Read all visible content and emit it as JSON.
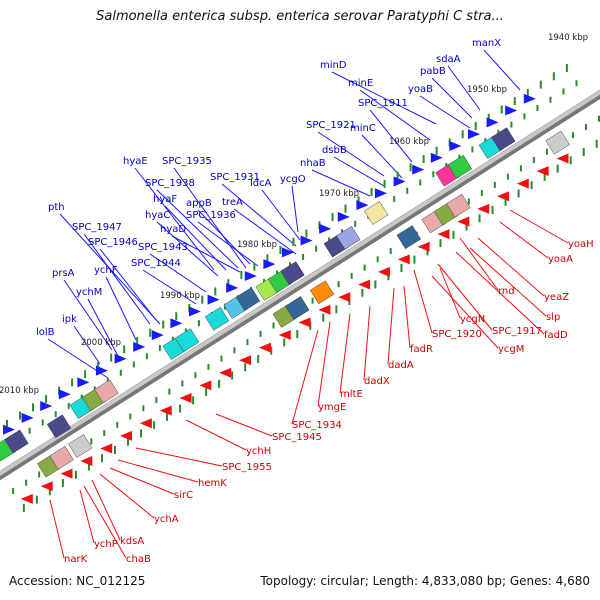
{
  "header": {
    "title": "Salmonella enterica subsp. enterica serovar Paratyphi C stra..."
  },
  "footer": {
    "accession": "Accession: NC_012125",
    "summary": "Topology: circular; Length: 4,833,080 bp; Genes: 4,680"
  },
  "map": {
    "ticks": [
      "1940 kbp",
      "1950 kbp",
      "1960 kbp",
      "1970 kbp",
      "1980 kbp",
      "1990 kbp",
      "2000 kbp",
      "2010 kbp"
    ],
    "forward_labels": [
      "manX",
      "sdaA",
      "pabB",
      "minD",
      "yoaB",
      "minE",
      "SPC_1911",
      "SPC_1921",
      "minC",
      "dsbB",
      "nhaB",
      "ycgO",
      "hyaE",
      "SPC_1935",
      "SPC_1938",
      "SPC_1931",
      "ldcA",
      "hyaF",
      "appB",
      "treA",
      "hyaC",
      "SPC_1936",
      "pth",
      "SPC_1947",
      "hyaD",
      "SPC_1946",
      "SPC_1943",
      "ychF",
      "SPC_1944",
      "prsA",
      "ychM",
      "ipk",
      "lolB"
    ],
    "reverse_labels": [
      "yoaH",
      "yoaA",
      "yeaZ",
      "rnd",
      "slp",
      "fadD",
      "SPC_1917",
      "ycgN",
      "ycgM",
      "SPC_1920",
      "fadR",
      "dadA",
      "dadX",
      "mltE",
      "ymgE",
      "SPC_1934",
      "SPC_1945",
      "ychH",
      "SPC_1955",
      "hemK",
      "sirC",
      "ychA",
      "kdsA",
      "chaB",
      "ychP",
      "narK"
    ],
    "colors": {
      "forward": "#1a1aff",
      "reverse": "#ee1111",
      "backbone": "#999999",
      "tick": "#2a8a2a"
    }
  }
}
